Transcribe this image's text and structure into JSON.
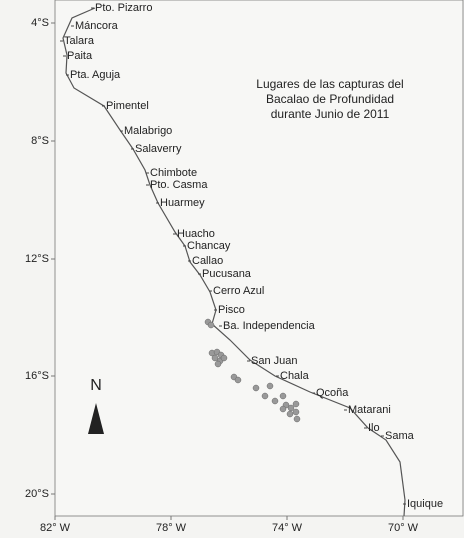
{
  "map": {
    "title": [
      "Lugares de las capturas del",
      "Bacalao de Profundidad",
      "durante Junio de 2011"
    ],
    "x_ticks": [
      "82° W",
      "78° W",
      "74° W",
      "70° W"
    ],
    "y_ticks": [
      "4°S",
      "8°S",
      "12°S",
      "16°S",
      "20°S"
    ],
    "north": "N",
    "places": [
      "Pto. Pizarro",
      "Máncora",
      "Talara",
      "Paita",
      "Pta. Aguja",
      "Pimentel",
      "Malabrigo",
      "Salaverry",
      "Chimbote",
      "Pto. Casma",
      "Huarmey",
      "Huacho",
      "Chancay",
      "Callao",
      "Pucusana",
      "Cerro Azul",
      "Pisco",
      "Ba. Independencia",
      "San Juan",
      "Chala",
      "Qcoña",
      "Matarani",
      "Ilo",
      "Sama",
      "Iquique"
    ]
  }
}
